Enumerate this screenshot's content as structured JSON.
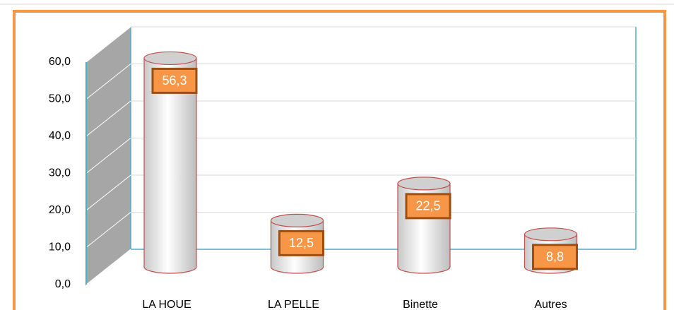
{
  "chart_data": {
    "type": "bar",
    "categories": [
      "LA HOUE",
      "LA PELLE",
      "Binette",
      "Autres"
    ],
    "values": [
      56.3,
      12.5,
      22.5,
      8.8
    ],
    "value_labels": [
      "56,3",
      "12,5",
      "22,5",
      "8,8"
    ],
    "color": "#c0504d",
    "label_color": "#f79646",
    "ylim": [
      0,
      60
    ],
    "yticks": [
      {
        "value": 0,
        "label": "0,0"
      },
      {
        "value": 10,
        "label": "10,0"
      },
      {
        "value": 20,
        "label": "20,0"
      },
      {
        "value": 30,
        "label": "30,0"
      },
      {
        "value": 40,
        "label": "40,0"
      },
      {
        "value": 50,
        "label": "50,0"
      },
      {
        "value": 60,
        "label": "60,0"
      }
    ],
    "grid": true
  }
}
